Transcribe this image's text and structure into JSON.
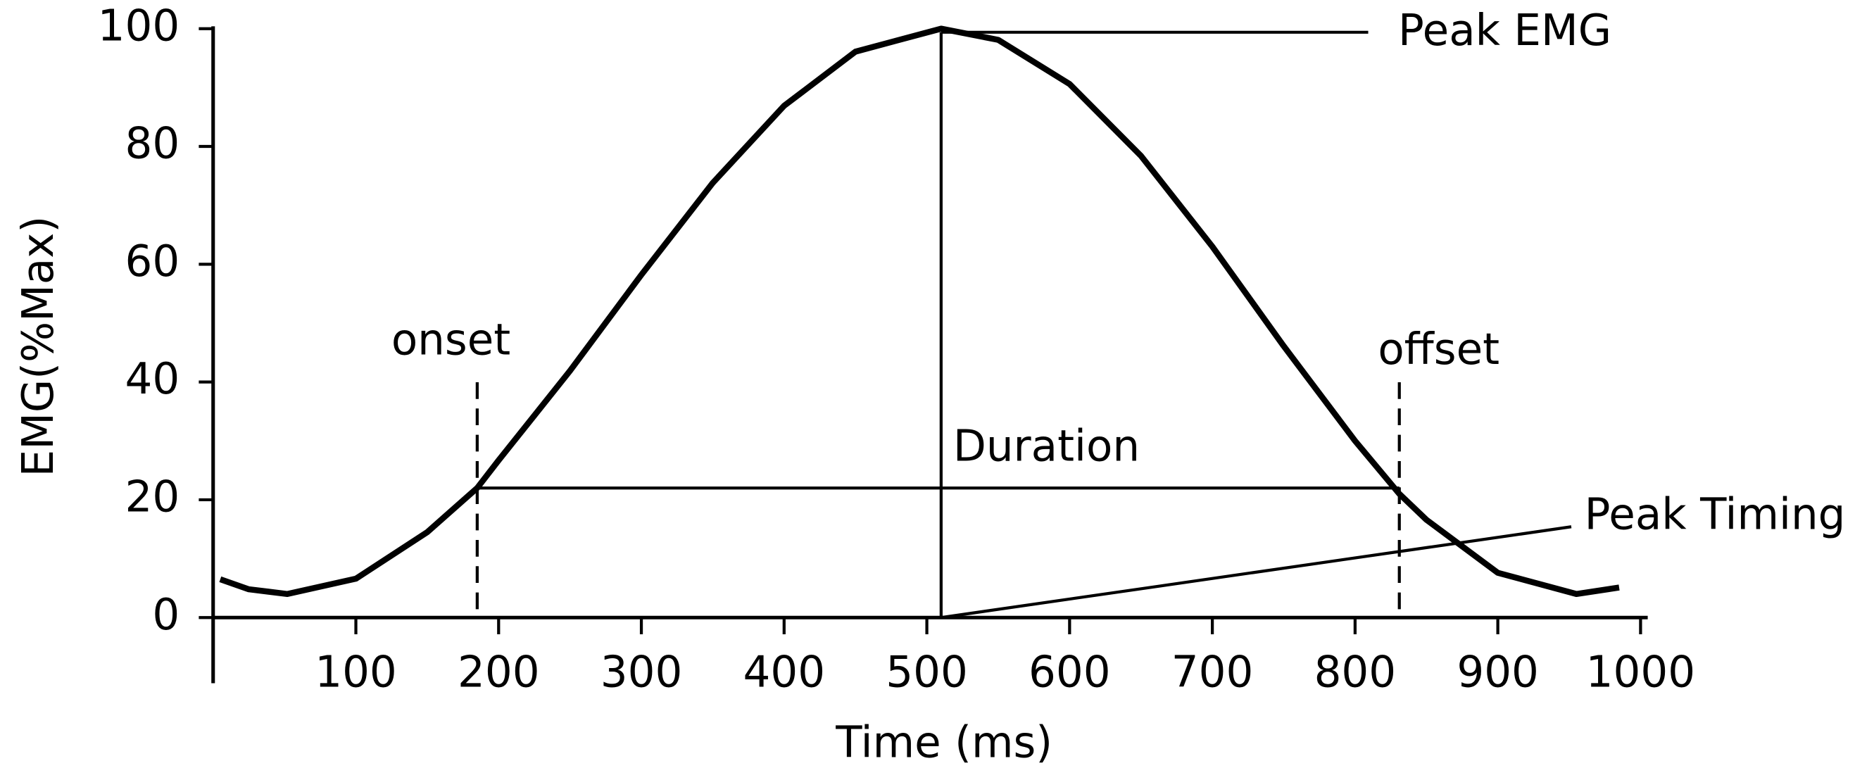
{
  "chart_data": {
    "type": "line",
    "xlabel": "Time (ms)",
    "ylabel": "EMG(%Max)",
    "series": [
      {
        "color": "#000000",
        "x": [
          5,
          25,
          52,
          100,
          150,
          185,
          200,
          250,
          300,
          350,
          400,
          450,
          510,
          550,
          600,
          650,
          700,
          750,
          800,
          831,
          850,
          900,
          955,
          985
        ],
        "values": [
          6.5,
          4.8,
          4,
          6.6,
          14.5,
          22,
          26.7,
          41.9,
          58.2,
          73.8,
          86.9,
          96.1,
          100,
          98.1,
          90.6,
          78.4,
          63,
          46.1,
          30,
          21,
          16.6,
          7.6,
          4,
          5.1
        ]
      }
    ],
    "xlim": [
      0,
      1000
    ],
    "xticks": [
      100,
      200,
      300,
      400,
      500,
      600,
      700,
      800,
      900,
      1000
    ],
    "ylim": [
      0,
      100
    ],
    "yticks": [
      0,
      20,
      40,
      60,
      80,
      100
    ],
    "annotations": [
      {
        "text": "Peak EMG",
        "x": 510,
        "y": 100
      },
      {
        "text": "onset",
        "x": 185,
        "y": 22
      },
      {
        "text": "offset",
        "x": 831,
        "y": 22
      },
      {
        "text": "Duration",
        "x": 510,
        "y": 22
      },
      {
        "text": "Peak Timing",
        "x": 510,
        "y": 0
      }
    ]
  }
}
